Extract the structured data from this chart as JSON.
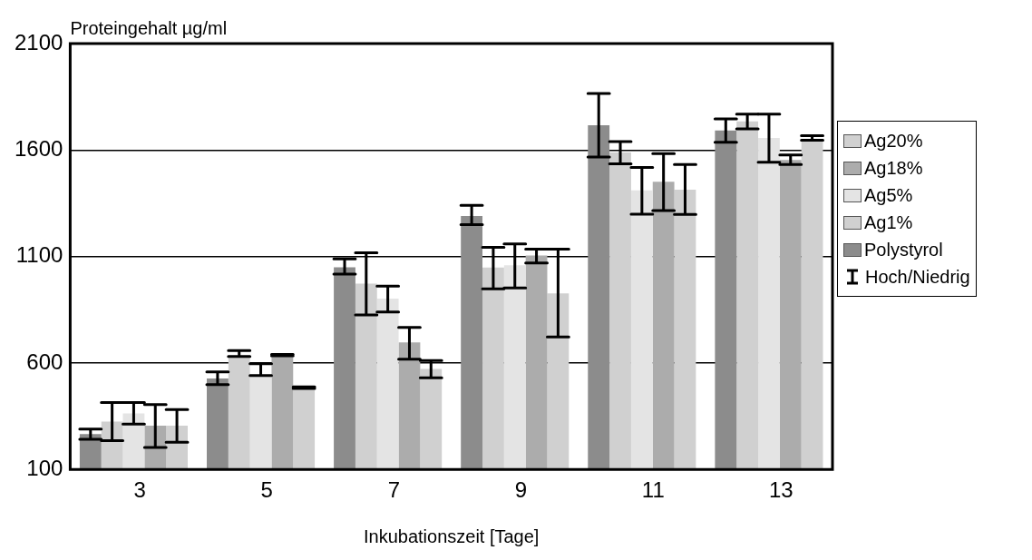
{
  "chart_data": {
    "type": "bar",
    "ylabel": "Proteingehalt µg/ml",
    "xlabel": "Inkubationszeit [Tage]",
    "categories": [
      "3",
      "5",
      "7",
      "9",
      "11",
      "13"
    ],
    "series": [
      {
        "name": "Polystyrol",
        "color": "#8c8c8c",
        "values": [
          266,
          527,
          1049,
          1290,
          1716,
          1692
        ],
        "errors": [
          [
            242,
            289
          ],
          [
            498,
            558
          ],
          [
            1017,
            1089
          ],
          [
            1250,
            1340
          ],
          [
            1567,
            1866
          ],
          [
            1636,
            1746
          ]
        ]
      },
      {
        "name": "Ag1%",
        "color": "#d0d0d0",
        "values": [
          325,
          627,
          973,
          1048,
          1588,
          1734
        ],
        "errors": [
          [
            235,
            414
          ],
          [
            631,
            658
          ],
          [
            825,
            1117
          ],
          [
            948,
            1143
          ],
          [
            1535,
            1640
          ],
          [
            1699,
            1769
          ]
        ]
      },
      {
        "name": "Ag5%",
        "color": "#e4e4e4",
        "values": [
          363,
          544,
          902,
          1059,
          1411,
          1657
        ],
        "errors": [
          [
            313,
            414
          ],
          [
            541,
            596
          ],
          [
            839,
            961
          ],
          [
            952,
            1159
          ],
          [
            1299,
            1518
          ],
          [
            1543,
            1769
          ]
        ]
      },
      {
        "name": "Ag18%",
        "color": "#acacac",
        "values": [
          305,
          637,
          697,
          1105,
          1451,
          1553
        ],
        "errors": [
          [
            203,
            405
          ],
          [
            634,
            640
          ],
          [
            618,
            767
          ],
          [
            1069,
            1134
          ],
          [
            1316,
            1583
          ],
          [
            1532,
            1577
          ]
        ]
      },
      {
        "name": "Ag20%",
        "color": "#d0d0d0",
        "values": [
          305,
          484,
          572,
          927,
          1414,
          1641
        ],
        "errors": [
          [
            228,
            381
          ],
          [
            480,
            488
          ],
          [
            530,
            611
          ],
          [
            722,
            1134
          ],
          [
            1298,
            1532
          ],
          [
            1646,
            1667
          ]
        ]
      }
    ],
    "ylim": [
      100,
      2100
    ],
    "yticks": [
      100,
      600,
      1100,
      1600,
      2100
    ],
    "grid": "y",
    "legend": "right",
    "annotations": [
      "Hoch/Niedrig"
    ]
  }
}
